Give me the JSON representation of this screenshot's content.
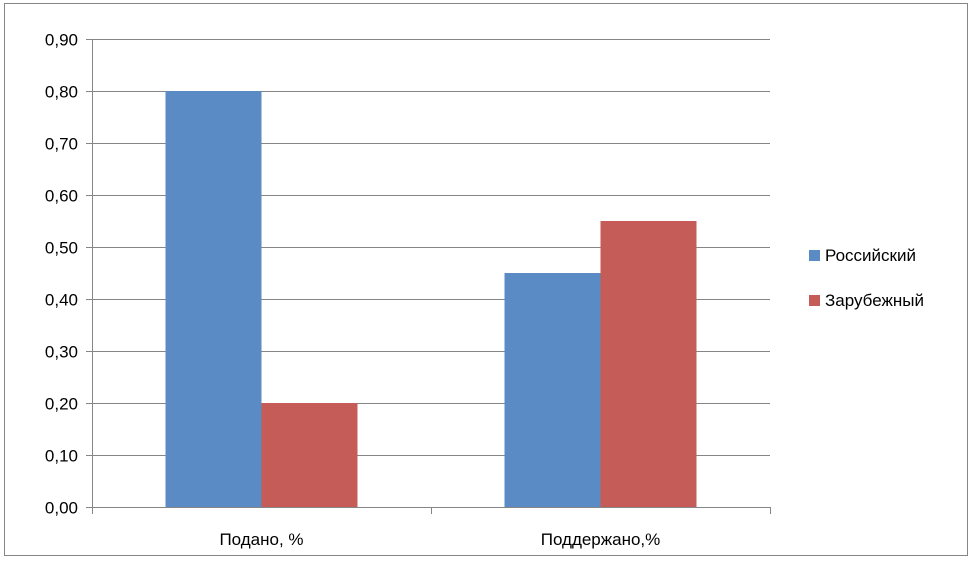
{
  "chart_data": {
    "type": "bar",
    "categories": [
      "Подано, %",
      "Поддержано,%"
    ],
    "series": [
      {
        "name": "Российский",
        "values": [
          0.8,
          0.45
        ],
        "color": "#5B8BC5"
      },
      {
        "name": "Зарубежный",
        "values": [
          0.2,
          0.55
        ],
        "color": "#C65C57"
      }
    ],
    "ylim": [
      0,
      0.9
    ],
    "yticks": [
      "0,00",
      "0,10",
      "0,20",
      "0,30",
      "0,40",
      "0,50",
      "0,60",
      "0,70",
      "0,80",
      "0,90"
    ],
    "grid": true,
    "legend_position": "right",
    "title": "",
    "xlabel": "",
    "ylabel": ""
  }
}
